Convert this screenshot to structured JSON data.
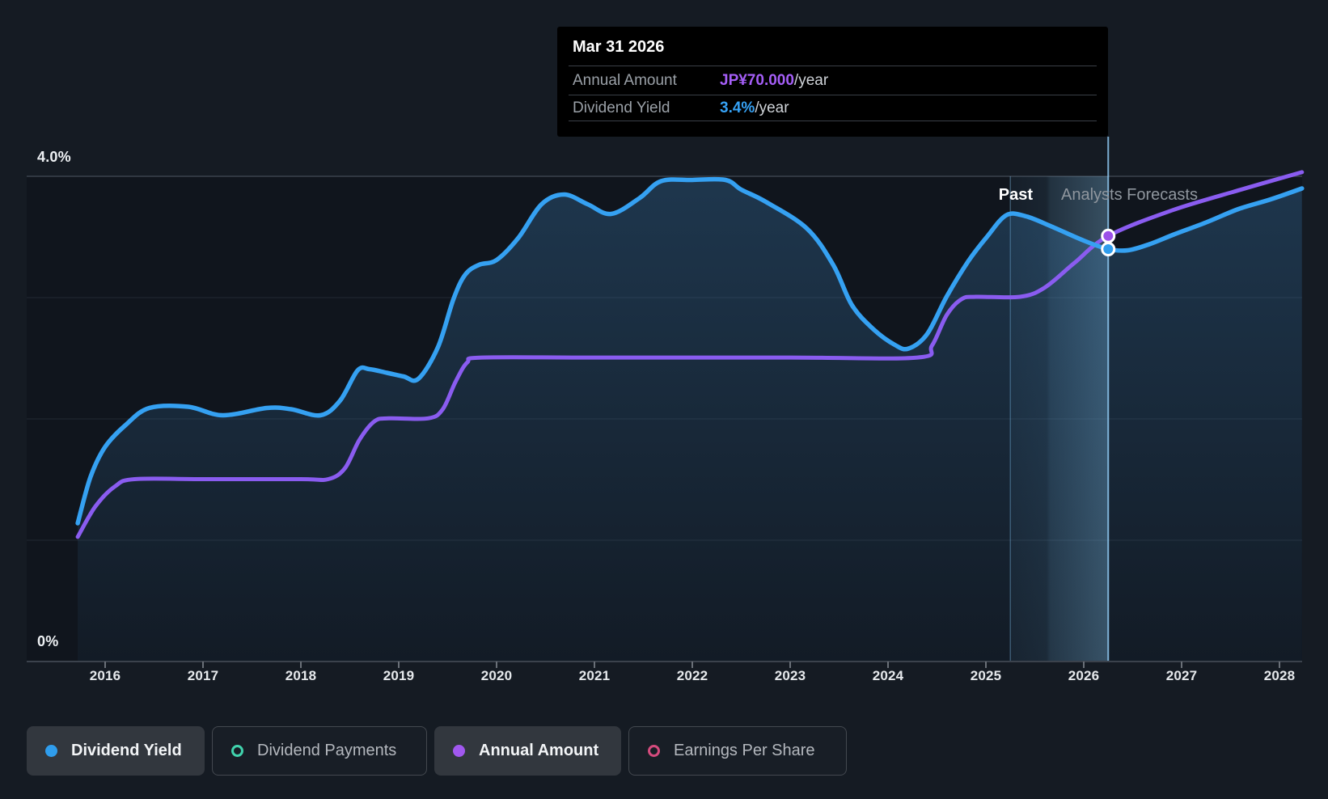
{
  "tooltip": {
    "date": "Mar 31 2026",
    "rows": [
      {
        "label": "Annual Amount",
        "value": "JP¥70.000",
        "suffix": "/year",
        "color": "#a55ef7"
      },
      {
        "label": "Dividend Yield",
        "value": "3.4%",
        "suffix": "/year",
        "color": "#36a2f5"
      }
    ]
  },
  "annotations": {
    "past": "Past",
    "forecast": "Analysts Forecasts"
  },
  "legend": {
    "items": [
      {
        "label": "Dividend Yield",
        "color": "#2f9ded",
        "style": "filled",
        "active": true
      },
      {
        "label": "Dividend Payments",
        "color": "#41d3ad",
        "style": "ring",
        "active": false
      },
      {
        "label": "Annual Amount",
        "color": "#a158ef",
        "style": "filled",
        "active": true
      },
      {
        "label": "Earnings Per Share",
        "color": "#d44b7d",
        "style": "ring",
        "active": false
      }
    ]
  },
  "chart_data": {
    "type": "area",
    "title": "Dividend history and forecast",
    "x_ticks": [
      2016,
      2017,
      2018,
      2019,
      2020,
      2021,
      2022,
      2023,
      2024,
      2025,
      2026,
      2027,
      2028
    ],
    "x_range": [
      2015.2,
      2028.25
    ],
    "y_axis": {
      "top_label": "4.0%",
      "bottom_label": "0%",
      "min_pct": 0,
      "max_pct": 4,
      "gridline_step_pct": 1
    },
    "grid": true,
    "legend_position": "bottom",
    "forecast_start_year": 2025.63,
    "hover": {
      "date": "Mar 31 2026",
      "year": 2026.25,
      "band_from_year": 2025.25,
      "band_to_year": 2026.25,
      "yield_pct": 3.4,
      "annual_amount_yen": 70
    },
    "series": [
      {
        "name": "Dividend Yield",
        "unit": "%",
        "color": "#35a1f2",
        "area_fill": true,
        "points": [
          [
            2015.72,
            1.14
          ],
          [
            2015.85,
            1.52
          ],
          [
            2016.0,
            1.77
          ],
          [
            2016.21,
            1.95
          ],
          [
            2016.45,
            2.09
          ],
          [
            2016.85,
            2.1
          ],
          [
            2017.2,
            2.03
          ],
          [
            2017.65,
            2.09
          ],
          [
            2017.9,
            2.08
          ],
          [
            2018.2,
            2.03
          ],
          [
            2018.4,
            2.15
          ],
          [
            2018.58,
            2.4
          ],
          [
            2018.7,
            2.41
          ],
          [
            2018.88,
            2.38
          ],
          [
            2019.05,
            2.35
          ],
          [
            2019.2,
            2.33
          ],
          [
            2019.4,
            2.59
          ],
          [
            2019.56,
            2.99
          ],
          [
            2019.68,
            3.19
          ],
          [
            2019.82,
            3.27
          ],
          [
            2020.0,
            3.31
          ],
          [
            2020.22,
            3.49
          ],
          [
            2020.46,
            3.77
          ],
          [
            2020.69,
            3.85
          ],
          [
            2020.93,
            3.77
          ],
          [
            2021.17,
            3.69
          ],
          [
            2021.46,
            3.82
          ],
          [
            2021.68,
            3.96
          ],
          [
            2022.0,
            3.97
          ],
          [
            2022.34,
            3.97
          ],
          [
            2022.5,
            3.89
          ],
          [
            2022.75,
            3.79
          ],
          [
            2023.17,
            3.57
          ],
          [
            2023.44,
            3.27
          ],
          [
            2023.63,
            2.94
          ],
          [
            2023.85,
            2.74
          ],
          [
            2024.07,
            2.61
          ],
          [
            2024.21,
            2.58
          ],
          [
            2024.4,
            2.7
          ],
          [
            2024.6,
            3.01
          ],
          [
            2024.82,
            3.3
          ],
          [
            2025.01,
            3.5
          ],
          [
            2025.21,
            3.68
          ],
          [
            2025.41,
            3.67
          ],
          [
            2025.66,
            3.59
          ],
          [
            2026.0,
            3.47
          ],
          [
            2026.25,
            3.4
          ],
          [
            2026.45,
            3.39
          ],
          [
            2026.67,
            3.44
          ],
          [
            2026.92,
            3.52
          ],
          [
            2027.25,
            3.62
          ],
          [
            2027.58,
            3.73
          ],
          [
            2027.91,
            3.81
          ],
          [
            2028.23,
            3.9
          ]
        ]
      },
      {
        "name": "Annual Amount",
        "unit": "JP¥",
        "color": "#8a5cf0",
        "area_fill": false,
        "points": [
          [
            2015.72,
            20.5
          ],
          [
            2015.9,
            25.5
          ],
          [
            2016.1,
            28.8
          ],
          [
            2016.3,
            30
          ],
          [
            2017.0,
            30
          ],
          [
            2018.0,
            30
          ],
          [
            2018.28,
            30
          ],
          [
            2018.45,
            31.8
          ],
          [
            2018.6,
            36.5
          ],
          [
            2018.75,
            39.5
          ],
          [
            2018.9,
            40
          ],
          [
            2019.3,
            40
          ],
          [
            2019.45,
            41.5
          ],
          [
            2019.58,
            46
          ],
          [
            2019.7,
            49.2
          ],
          [
            2019.85,
            50
          ],
          [
            2021.0,
            50
          ],
          [
            2023.0,
            50
          ],
          [
            2024.3,
            50
          ],
          [
            2024.45,
            52
          ],
          [
            2024.6,
            57
          ],
          [
            2024.75,
            59.6
          ],
          [
            2024.9,
            60
          ],
          [
            2025.35,
            60
          ],
          [
            2025.6,
            61.5
          ],
          [
            2025.9,
            65.5
          ],
          [
            2026.25,
            70
          ],
          [
            2026.9,
            74.2
          ],
          [
            2027.6,
            77.6
          ],
          [
            2028.23,
            80.5
          ]
        ]
      }
    ],
    "markers": [
      {
        "series": 0,
        "year": 2026.25,
        "value": 3.4,
        "fill": "#2f9ded"
      },
      {
        "series": 1,
        "year": 2026.25,
        "value": 70,
        "fill": "#9b51e8"
      }
    ]
  }
}
